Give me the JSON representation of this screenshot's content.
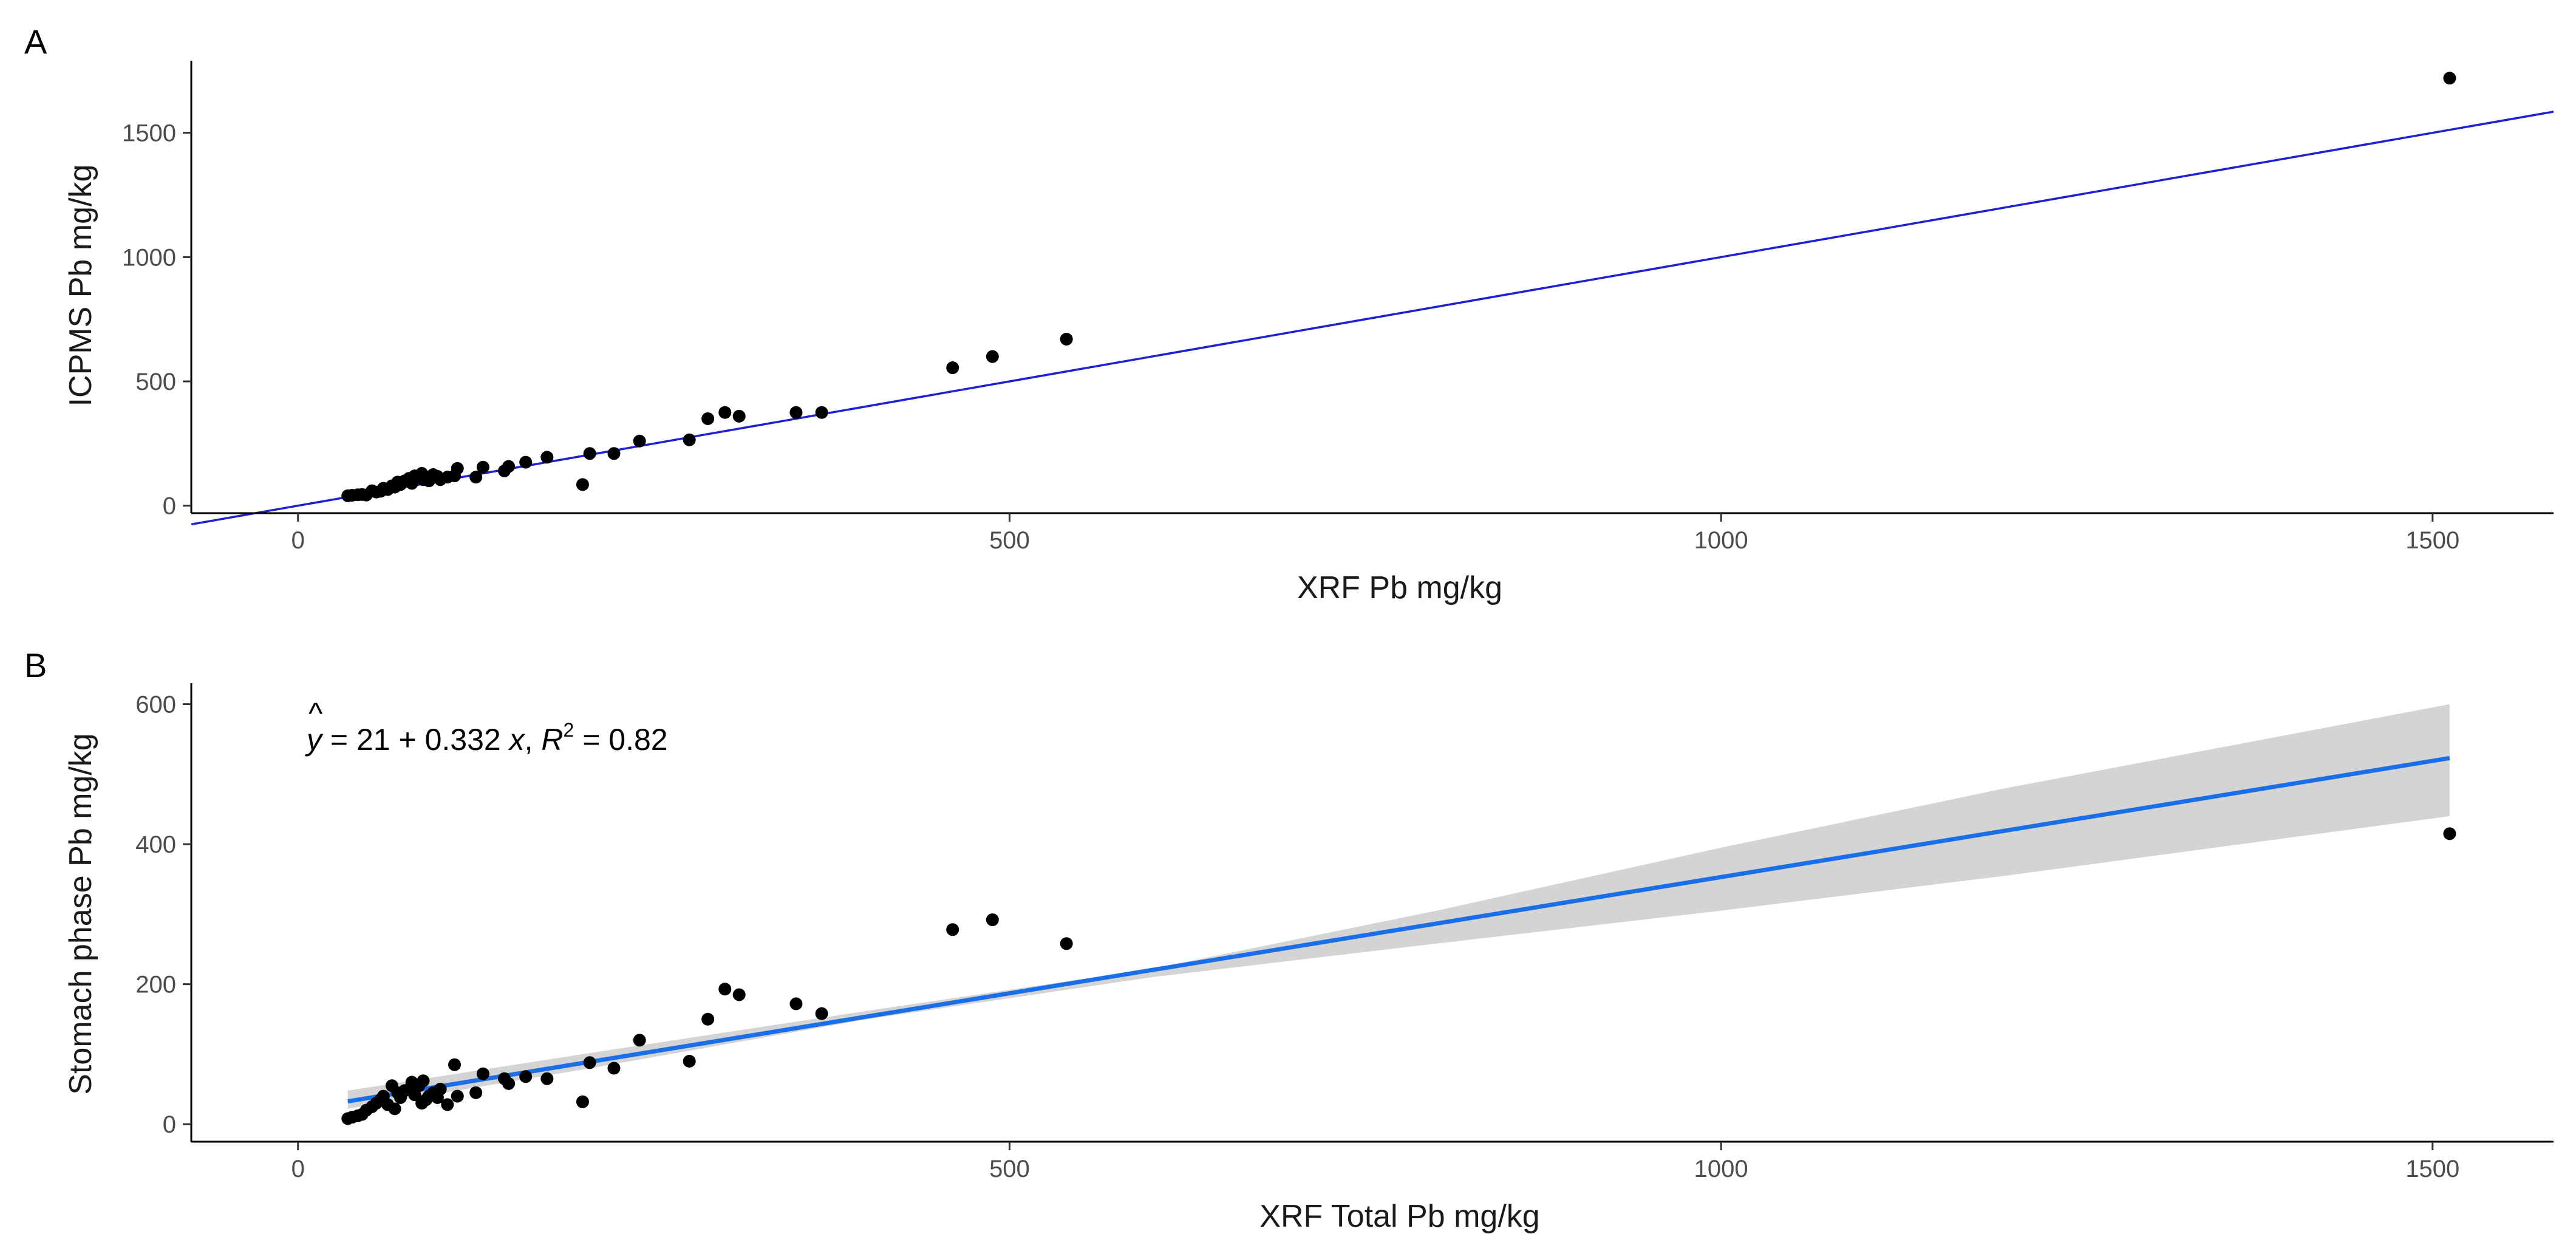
{
  "chart_data": [
    {
      "panel": "A",
      "type": "scatter",
      "xlabel": "XRF Pb mg/kg",
      "ylabel": "ICPMS Pb mg/kg",
      "xlim": [
        -75,
        1585
      ],
      "ylim": [
        -30,
        1790
      ],
      "xticks": [
        0,
        500,
        1000,
        1500
      ],
      "yticks": [
        0,
        500,
        1000,
        1500
      ],
      "grid": false,
      "reference_line": {
        "type": "identity",
        "slope": 1,
        "intercept": 0,
        "color": "#1f1fd6"
      },
      "points": [
        [
          35,
          40
        ],
        [
          38,
          42
        ],
        [
          42,
          44
        ],
        [
          45,
          45
        ],
        [
          48,
          43
        ],
        [
          52,
          60
        ],
        [
          55,
          55
        ],
        [
          58,
          58
        ],
        [
          60,
          70
        ],
        [
          63,
          65
        ],
        [
          66,
          80
        ],
        [
          68,
          75
        ],
        [
          70,
          95
        ],
        [
          72,
          85
        ],
        [
          75,
          100
        ],
        [
          78,
          110
        ],
        [
          80,
          90
        ],
        [
          82,
          120
        ],
        [
          85,
          115
        ],
        [
          87,
          130
        ],
        [
          88,
          105
        ],
        [
          90,
          110
        ],
        [
          92,
          100
        ],
        [
          95,
          125
        ],
        [
          98,
          118
        ],
        [
          100,
          105
        ],
        [
          105,
          115
        ],
        [
          110,
          120
        ],
        [
          112,
          150
        ],
        [
          125,
          115
        ],
        [
          130,
          155
        ],
        [
          145,
          140
        ],
        [
          148,
          158
        ],
        [
          160,
          175
        ],
        [
          175,
          195
        ],
        [
          200,
          85
        ],
        [
          205,
          210
        ],
        [
          222,
          210
        ],
        [
          240,
          260
        ],
        [
          275,
          265
        ],
        [
          288,
          350
        ],
        [
          300,
          375
        ],
        [
          310,
          360
        ],
        [
          350,
          375
        ],
        [
          368,
          375
        ],
        [
          460,
          555
        ],
        [
          488,
          600
        ],
        [
          540,
          670
        ],
        [
          1512,
          1720
        ]
      ],
      "point_color": "#000000"
    },
    {
      "panel": "B",
      "type": "scatter",
      "xlabel": "XRF Total Pb mg/kg",
      "ylabel": "Stomach phase Pb mg/kg",
      "xlim": [
        -75,
        1585
      ],
      "ylim": [
        -25,
        630
      ],
      "xticks": [
        0,
        500,
        1000,
        1500
      ],
      "yticks": [
        0,
        200,
        400,
        600
      ],
      "grid": false,
      "annotation": {
        "yhat": "y",
        "eq": " = 21 + 0.332 ",
        "x": "x",
        "comma": ", ",
        "R": "R",
        "sup": "2",
        "rest": " = 0.82"
      },
      "regression": {
        "intercept": 21,
        "slope": 0.332,
        "r_squared": 0.82,
        "x_range": [
          35,
          1512
        ],
        "line_color": "#1a6fe8",
        "band_color": "#d4d4d4",
        "band_lower_at_x": [
          [
            35,
            22
          ],
          [
            200,
            78
          ],
          [
            400,
            150
          ],
          [
            600,
            210
          ],
          [
            800,
            258
          ],
          [
            1000,
            305
          ],
          [
            1200,
            355
          ],
          [
            1512,
            440
          ]
        ],
        "band_upper_at_x": [
          [
            35,
            48
          ],
          [
            200,
            100
          ],
          [
            400,
            162
          ],
          [
            600,
            222
          ],
          [
            800,
            305
          ],
          [
            1000,
            395
          ],
          [
            1200,
            480
          ],
          [
            1512,
            600
          ]
        ]
      },
      "points": [
        [
          35,
          8
        ],
        [
          38,
          10
        ],
        [
          42,
          12
        ],
        [
          45,
          14
        ],
        [
          48,
          20
        ],
        [
          52,
          25
        ],
        [
          55,
          30
        ],
        [
          58,
          35
        ],
        [
          60,
          40
        ],
        [
          63,
          28
        ],
        [
          66,
          55
        ],
        [
          68,
          22
        ],
        [
          70,
          45
        ],
        [
          72,
          38
        ],
        [
          75,
          48
        ],
        [
          78,
          50
        ],
        [
          80,
          60
        ],
        [
          82,
          42
        ],
        [
          85,
          55
        ],
        [
          87,
          30
        ],
        [
          88,
          62
        ],
        [
          90,
          35
        ],
        [
          92,
          40
        ],
        [
          95,
          45
        ],
        [
          98,
          38
        ],
        [
          100,
          50
        ],
        [
          105,
          28
        ],
        [
          110,
          85
        ],
        [
          112,
          40
        ],
        [
          125,
          45
        ],
        [
          130,
          72
        ],
        [
          145,
          65
        ],
        [
          148,
          58
        ],
        [
          160,
          68
        ],
        [
          175,
          65
        ],
        [
          200,
          32
        ],
        [
          205,
          88
        ],
        [
          222,
          80
        ],
        [
          240,
          120
        ],
        [
          275,
          90
        ],
        [
          288,
          150
        ],
        [
          300,
          193
        ],
        [
          310,
          185
        ],
        [
          350,
          172
        ],
        [
          368,
          158
        ],
        [
          460,
          278
        ],
        [
          488,
          292
        ],
        [
          540,
          258
        ],
        [
          1512,
          415
        ]
      ],
      "point_color": "#000000"
    }
  ]
}
